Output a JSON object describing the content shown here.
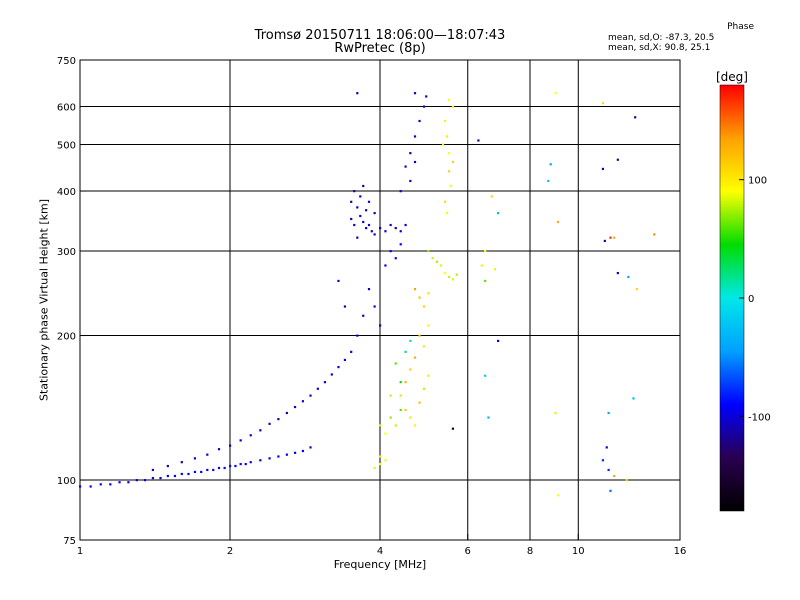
{
  "title": {
    "line1": "Tromsø 20150711 18:06:00—18:07:43",
    "line2": "RwPretec (8p)"
  },
  "phase_legend": {
    "title": "Phase",
    "o_stats": "mean, sd,O:  -87.3, 20.5",
    "x_stats": "mean, sd,X:   90.8, 25.1"
  },
  "colorbar": {
    "unit": "[deg]",
    "ticks": [
      {
        "value": 100,
        "label": "100"
      },
      {
        "value": 0,
        "label": "0"
      },
      {
        "value": -100,
        "label": "-100"
      }
    ],
    "range": [
      -180,
      180
    ]
  },
  "chart_data": {
    "type": "scatter",
    "title": "Tromsø 20150711 18:06:00—18:07:43",
    "subtitle": "RwPretec (8p)",
    "xlabel": "Frequency [MHz]",
    "ylabel": "Stationary phase Virtual Height [km]",
    "x_scale": "log",
    "y_scale": "log",
    "xlim": [
      1,
      16
    ],
    "ylim": [
      75,
      750
    ],
    "x_ticks": [
      {
        "value": 1,
        "label": "1"
      },
      {
        "value": 2,
        "label": "2"
      },
      {
        "value": 4,
        "label": "4"
      },
      {
        "value": 6,
        "label": "6"
      },
      {
        "value": 8,
        "label": "8"
      },
      {
        "value": 10,
        "label": "10"
      },
      {
        "value": 16,
        "label": "16"
      }
    ],
    "y_ticks": [
      {
        "value": 75,
        "label": "75"
      },
      {
        "value": 100,
        "label": "100"
      },
      {
        "value": 200,
        "label": "200"
      },
      {
        "value": 300,
        "label": "300"
      },
      {
        "value": 400,
        "label": "400"
      },
      {
        "value": 500,
        "label": "500"
      },
      {
        "value": 600,
        "label": "600"
      },
      {
        "value": 750,
        "label": "750"
      }
    ],
    "grid": true,
    "x_gridlines": [
      2,
      4,
      6,
      8,
      10
    ],
    "y_gridlines": [
      100,
      200,
      300,
      400,
      500,
      600
    ],
    "colormap_stops": [
      "#000000",
      "#2a0050",
      "#0000ff",
      "#00a0ff",
      "#00e8e8",
      "#00dc00",
      "#ffff00",
      "#ffa000",
      "#ff0000"
    ],
    "series": [
      {
        "values": [
          [
            1.0,
            97,
            -95
          ],
          [
            1.05,
            97,
            -93
          ],
          [
            1.1,
            98,
            -92
          ],
          [
            1.15,
            98,
            -95
          ],
          [
            1.2,
            99,
            -90
          ],
          [
            1.25,
            99,
            -92
          ],
          [
            1.3,
            100,
            -95
          ],
          [
            1.35,
            100,
            -94
          ],
          [
            1.4,
            101,
            -92
          ],
          [
            1.45,
            101,
            -90
          ],
          [
            1.5,
            102,
            -93
          ],
          [
            1.55,
            102,
            -95
          ],
          [
            1.6,
            103,
            -92
          ],
          [
            1.65,
            103,
            -95
          ],
          [
            1.7,
            104,
            -90
          ],
          [
            1.75,
            104,
            -92
          ],
          [
            1.8,
            105,
            -95
          ],
          [
            1.85,
            105,
            -96
          ],
          [
            1.9,
            106,
            -92
          ],
          [
            1.95,
            106,
            -94
          ],
          [
            2.0,
            107,
            -95
          ],
          [
            2.05,
            107,
            -90
          ],
          [
            2.1,
            108,
            -93
          ],
          [
            2.15,
            108,
            -92
          ],
          [
            2.2,
            109,
            -95
          ],
          [
            2.3,
            110,
            -90
          ],
          [
            2.4,
            111,
            -92
          ],
          [
            2.5,
            112,
            -95
          ],
          [
            2.6,
            113,
            -92
          ],
          [
            2.7,
            114,
            -93
          ],
          [
            2.8,
            115,
            -90
          ],
          [
            2.9,
            117,
            -95
          ],
          [
            1.4,
            105,
            -110
          ],
          [
            1.5,
            107,
            -108
          ],
          [
            1.6,
            109,
            -112
          ],
          [
            1.7,
            111,
            -105
          ],
          [
            1.8,
            113,
            -110
          ],
          [
            1.9,
            116,
            -108
          ],
          [
            2.0,
            118,
            -106
          ],
          [
            2.1,
            121,
            -110
          ],
          [
            2.2,
            124,
            -104
          ],
          [
            2.3,
            127,
            -108
          ],
          [
            2.4,
            131,
            -105
          ],
          [
            2.5,
            134,
            -110
          ],
          [
            2.6,
            138,
            -103
          ],
          [
            2.7,
            142,
            -106
          ],
          [
            2.8,
            146,
            -104
          ],
          [
            2.9,
            150,
            -102
          ],
          [
            3.0,
            155,
            -100
          ],
          [
            3.1,
            160,
            -105
          ],
          [
            3.2,
            166,
            -102
          ],
          [
            3.3,
            172,
            -100
          ],
          [
            3.4,
            178,
            -98
          ],
          [
            3.5,
            185,
            -102
          ],
          [
            3.5,
            380,
            -110
          ],
          [
            3.5,
            350,
            -105
          ],
          [
            3.55,
            400,
            -115
          ],
          [
            3.55,
            340,
            -100
          ],
          [
            3.6,
            370,
            -108
          ],
          [
            3.6,
            320,
            -112
          ],
          [
            3.65,
            390,
            -104
          ],
          [
            3.65,
            355,
            -110
          ],
          [
            3.7,
            345,
            -100
          ],
          [
            3.7,
            410,
            -120
          ],
          [
            3.75,
            335,
            -108
          ],
          [
            3.75,
            365,
            -112
          ],
          [
            3.8,
            340,
            -105
          ],
          [
            3.8,
            380,
            -100
          ],
          [
            3.85,
            330,
            -110
          ],
          [
            3.9,
            325,
            -104
          ],
          [
            3.9,
            360,
            -108
          ],
          [
            3.6,
            200,
            -100
          ],
          [
            3.7,
            220,
            -105
          ],
          [
            3.8,
            250,
            -110
          ],
          [
            3.9,
            230,
            -100
          ],
          [
            4.0,
            210,
            -108
          ],
          [
            3.4,
            230,
            -112
          ],
          [
            3.3,
            260,
            -104
          ],
          [
            4.0,
            335,
            -105
          ],
          [
            4.1,
            330,
            -100
          ],
          [
            4.2,
            340,
            -104
          ],
          [
            4.3,
            335,
            -108
          ],
          [
            4.4,
            330,
            -102
          ],
          [
            4.5,
            340,
            -106
          ],
          [
            4.4,
            400,
            -100
          ],
          [
            4.5,
            450,
            -110
          ],
          [
            4.6,
            480,
            -104
          ],
          [
            4.7,
            520,
            -108
          ],
          [
            4.8,
            560,
            -100
          ],
          [
            4.9,
            600,
            -106
          ],
          [
            4.95,
            630,
            -102
          ],
          [
            4.7,
            460,
            -105
          ],
          [
            4.6,
            420,
            -108
          ],
          [
            4.2,
            300,
            -95
          ],
          [
            4.3,
            290,
            -100
          ],
          [
            4.4,
            310,
            -90
          ],
          [
            4.1,
            280,
            -98
          ],
          [
            5.4,
            560,
            95
          ],
          [
            5.45,
            520,
            100
          ],
          [
            5.5,
            480,
            90
          ],
          [
            5.5,
            440,
            110
          ],
          [
            5.55,
            410,
            95
          ],
          [
            5.4,
            380,
            105
          ],
          [
            5.45,
            360,
            88
          ],
          [
            5.6,
            600,
            100
          ],
          [
            5.5,
            620,
            92
          ],
          [
            5.35,
            500,
            85
          ],
          [
            5.6,
            460,
            110
          ],
          [
            5.0,
            300,
            70
          ],
          [
            5.1,
            290,
            80
          ],
          [
            5.2,
            285,
            75
          ],
          [
            5.3,
            280,
            85
          ],
          [
            5.4,
            270,
            90
          ],
          [
            5.5,
            265,
            78
          ],
          [
            5.6,
            262,
            82
          ],
          [
            5.7,
            268,
            76
          ],
          [
            4.8,
            200,
            120
          ],
          [
            4.9,
            190,
            100
          ],
          [
            5.0,
            210,
            95
          ],
          [
            4.7,
            180,
            130
          ],
          [
            4.6,
            170,
            110
          ],
          [
            4.5,
            160,
            125
          ],
          [
            4.4,
            150,
            105
          ],
          [
            4.5,
            140,
            115
          ],
          [
            4.6,
            135,
            100
          ],
          [
            4.7,
            130,
            95
          ],
          [
            4.8,
            145,
            120
          ],
          [
            4.9,
            155,
            110
          ],
          [
            5.0,
            165,
            100
          ],
          [
            4.7,
            250,
            135
          ],
          [
            4.8,
            240,
            120
          ],
          [
            4.9,
            230,
            110
          ],
          [
            5.0,
            245,
            105
          ],
          [
            4.3,
            175,
            60
          ],
          [
            4.4,
            160,
            40
          ],
          [
            4.2,
            150,
            80
          ],
          [
            4.5,
            185,
            20
          ],
          [
            4.6,
            195,
            -10
          ],
          [
            4.0,
            108,
            90
          ],
          [
            4.1,
            110,
            95
          ],
          [
            3.9,
            106,
            85
          ],
          [
            4.0,
            112,
            100
          ],
          [
            4.2,
            135,
            70
          ],
          [
            4.3,
            130,
            80
          ],
          [
            4.4,
            140,
            60
          ],
          [
            4.1,
            125,
            90
          ],
          [
            4.0,
            130,
            100
          ],
          [
            5.6,
            128,
            -150
          ],
          [
            3.6,
            640,
            -110
          ],
          [
            4.7,
            640,
            -105
          ],
          [
            6.3,
            510,
            -105
          ],
          [
            6.9,
            360,
            -30
          ],
          [
            6.7,
            390,
            110
          ],
          [
            6.5,
            300,
            90
          ],
          [
            6.4,
            280,
            100
          ],
          [
            6.5,
            260,
            60
          ],
          [
            6.8,
            275,
            85
          ],
          [
            6.9,
            195,
            -100
          ],
          [
            6.5,
            165,
            -20
          ],
          [
            6.6,
            135,
            -30
          ],
          [
            9.0,
            640,
            90
          ],
          [
            8.8,
            455,
            -40
          ],
          [
            8.7,
            420,
            -20
          ],
          [
            9.1,
            345,
            130
          ],
          [
            9.0,
            138,
            100
          ],
          [
            9.1,
            93,
            90
          ],
          [
            11.2,
            610,
            110
          ],
          [
            11.6,
            320,
            170
          ],
          [
            11.8,
            320,
            130
          ],
          [
            11.3,
            315,
            -110
          ],
          [
            11.5,
            105,
            -80
          ],
          [
            12.0,
            270,
            -110
          ],
          [
            12.6,
            265,
            -40
          ],
          [
            13.1,
            250,
            110
          ],
          [
            12.0,
            465,
            -110
          ],
          [
            11.2,
            445,
            -110
          ],
          [
            13.0,
            570,
            -120
          ],
          [
            14.2,
            325,
            140
          ],
          [
            12.9,
            148,
            -30
          ],
          [
            11.5,
            138,
            -40
          ],
          [
            11.4,
            117,
            -105
          ],
          [
            11.2,
            110,
            -80
          ],
          [
            11.6,
            95,
            -60
          ],
          [
            11.8,
            102,
            130
          ],
          [
            12.5,
            100,
            110
          ]
        ]
      }
    ]
  }
}
